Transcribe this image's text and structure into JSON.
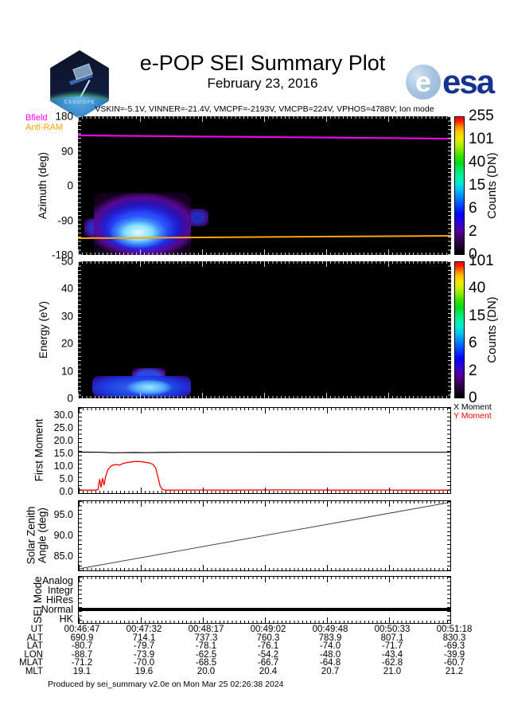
{
  "header": {
    "title": "e-POP SEI Summary Plot",
    "date": "February 23, 2016",
    "patch_label": "CASSIOPE",
    "esa_label": "esa",
    "esa_globe_letter": "e"
  },
  "annotation": "VSKIN=-5.1V, VINNER=-21.4V, VMCPF=-2193V, VMCPB=224V, VPHOS=4788V; Ion mode",
  "footer": "Produced by sei_summary v2.0e on Mon Mar 25 02:26:38 2024",
  "colors": {
    "bfield": "#ff00ff",
    "anti_ram": "#ffa500",
    "x_moment": "#000000",
    "y_moment": "#ff0000",
    "esa_blue": "#16338f"
  },
  "chart_data": [
    {
      "type": "heatmap",
      "name": "azimuth-spectrogram",
      "ylabel": "Azimuth (deg)",
      "yticks": [
        "180",
        "90",
        "0",
        "-90",
        "-180"
      ],
      "ylim": [
        -180,
        180
      ],
      "colorbar": {
        "label": "Counts (DN)",
        "ticks": [
          "255",
          "101",
          "40",
          "15",
          "6",
          "2",
          "0"
        ]
      },
      "legend": [
        {
          "label": "Bfield",
          "color": "#ff00ff"
        },
        {
          "label": "Anti-RAM",
          "color": "#ffa500"
        }
      ],
      "overlays": [
        {
          "name": "Bfield",
          "color": "#ff00ff",
          "y_deg_start": 131,
          "y_deg_end": 124
        },
        {
          "name": "Anti-RAM",
          "color": "#ffa500",
          "y_deg_start": -137,
          "y_deg_end": -134
        }
      ],
      "blob": {
        "time_frac_range": [
          0.05,
          0.3
        ],
        "azimuth_deg_range": [
          -185,
          -30
        ],
        "peak_azimuth_deg": -115
      }
    },
    {
      "type": "heatmap",
      "name": "energy-spectrogram",
      "ylabel": "Energy (eV)",
      "yticks": [
        "50",
        "40",
        "30",
        "20",
        "10",
        "0"
      ],
      "ylim": [
        0,
        50
      ],
      "colorbar": {
        "label": "Counts (DN)",
        "ticks": [
          "101",
          "40",
          "15",
          "6",
          "2",
          "0"
        ]
      },
      "blob": {
        "time_frac_range": [
          0.05,
          0.28
        ],
        "energy_ev_range": [
          0,
          5
        ]
      }
    },
    {
      "type": "line",
      "name": "first-moment",
      "ylabel": "First Moment",
      "yticks": [
        "30.0",
        "25.0",
        "20.0",
        "15.0",
        "10.0",
        "5.0",
        "0.0"
      ],
      "ylim": [
        -1,
        33
      ],
      "legend": [
        {
          "label": "X Moment",
          "color": "#000000"
        },
        {
          "label": "Y Moment",
          "color": "#ff0000"
        }
      ],
      "series": [
        {
          "name": "X Moment",
          "color": "#000000",
          "width": 1.2,
          "x": [
            0,
            0.06,
            0.09,
            0.12,
            0.15,
            0.18,
            0.22,
            0.28,
            0.4,
            0.6,
            0.8,
            1.0
          ],
          "y": [
            15.35,
            15.3,
            15.1,
            15.15,
            15.2,
            15.15,
            15.25,
            15.3,
            15.3,
            15.32,
            15.3,
            15.3
          ]
        },
        {
          "name": "Y Moment",
          "color": "#ff0000",
          "width": 1.3,
          "x": [
            0,
            0.045,
            0.052,
            0.056,
            0.06,
            0.064,
            0.068,
            0.072,
            0.078,
            0.085,
            0.092,
            0.1,
            0.11,
            0.12,
            0.135,
            0.15,
            0.165,
            0.18,
            0.192,
            0.2,
            0.207,
            0.213,
            0.219,
            0.225,
            0.232,
            0.3,
            0.42,
            0.55,
            0.68,
            0.8,
            0.92,
            1.0
          ],
          "y": [
            0.2,
            0.2,
            0.5,
            4.6,
            1.3,
            5.0,
            2.2,
            5.5,
            8.2,
            9.6,
            10.2,
            10.4,
            10.2,
            10.9,
            11.3,
            11.6,
            11.6,
            11.3,
            11.0,
            10.4,
            9.0,
            5.5,
            1.8,
            0.5,
            0.2,
            0.25,
            0.2,
            0.3,
            0.2,
            0.25,
            0.2,
            0.2
          ]
        }
      ]
    },
    {
      "type": "line",
      "name": "solar-zenith-angle",
      "ylabel_lines": [
        "Solar Zenith",
        "Angle (deg)"
      ],
      "yticks": [
        "95.0",
        "90.0",
        "85.0"
      ],
      "ylim": [
        81.2,
        98.6
      ],
      "series": [
        {
          "name": "SZA",
          "color": "#444444",
          "width": 1,
          "x": [
            0,
            1.0
          ],
          "y": [
            81.6,
            98.3
          ]
        }
      ]
    },
    {
      "type": "line",
      "name": "sei-mode",
      "ylabel": "SEI Mode",
      "categories": [
        "Analog",
        "Integr",
        "HiRes",
        "Normal",
        "HK"
      ],
      "value": "Normal"
    }
  ],
  "ephemeris": {
    "row_labels": [
      "UT",
      "ALT",
      "LAT",
      "LON",
      "MLAT",
      "MLT"
    ],
    "columns": [
      [
        "00:46:47",
        "690.9",
        "-80.7",
        "-88.7",
        "-71.2",
        "19.1"
      ],
      [
        "00:47:32",
        "714.1",
        "-79.7",
        "-73.9",
        "-70.0",
        "19.6"
      ],
      [
        "00:48:17",
        "737.3",
        "-78.1",
        "-62.5",
        "-68.5",
        "20.0"
      ],
      [
        "00:49:02",
        "760.3",
        "-76.1",
        "-54.2",
        "-66.7",
        "20.4"
      ],
      [
        "00:49:48",
        "783.9",
        "-74.0",
        "-48.0",
        "-64.8",
        "20.7"
      ],
      [
        "00:50:33",
        "807.1",
        "-71.7",
        "-43.4",
        "-62.8",
        "21.0"
      ],
      [
        "00:51:18",
        "830.3",
        "-69.3",
        "-39.9",
        "-60.7",
        "21.2"
      ]
    ]
  }
}
